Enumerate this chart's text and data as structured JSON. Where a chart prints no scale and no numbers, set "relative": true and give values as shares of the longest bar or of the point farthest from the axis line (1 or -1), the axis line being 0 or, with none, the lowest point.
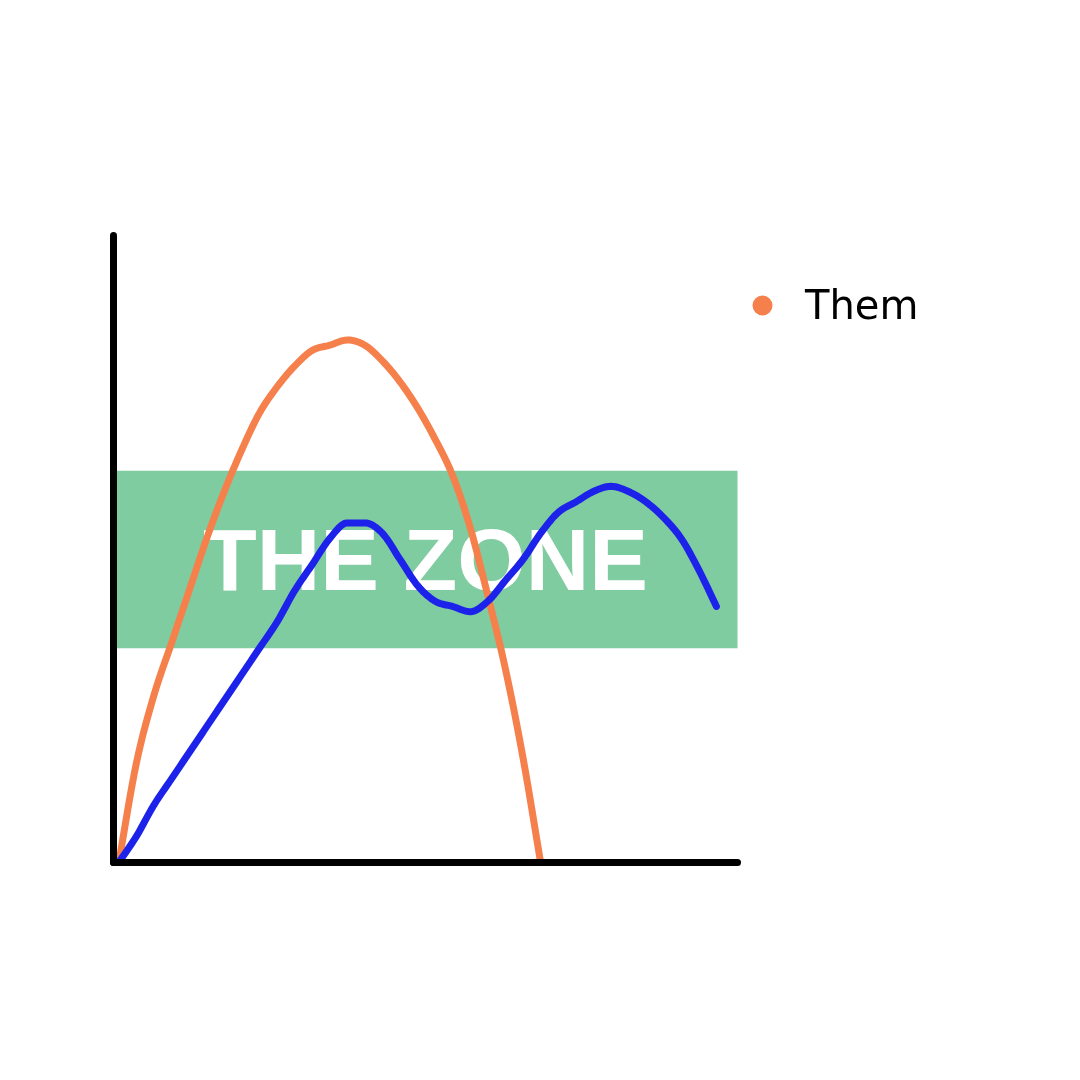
{
  "chart_data": {
    "type": "line",
    "relative": true,
    "categories": [
      null,
      null,
      null,
      null,
      null,
      null,
      null,
      null,
      null,
      null,
      null,
      null,
      null,
      null,
      null,
      null,
      null,
      null,
      null,
      null,
      null,
      null,
      null,
      null,
      null,
      null,
      null,
      null,
      null,
      null,
      null,
      null,
      null,
      null,
      null
    ],
    "series": [
      {
        "name": "Them",
        "color": "#f5804c",
        "values": [
          0,
          0.19,
          0.32,
          0.42,
          0.52,
          0.62,
          0.71,
          0.79,
          0.86,
          0.91,
          0.95,
          0.98,
          0.99,
          1,
          0.99,
          0.96,
          0.92,
          0.87,
          0.81,
          0.74,
          0.64,
          0.51,
          0.37,
          0.2,
          0,
          null,
          null,
          null,
          null,
          null,
          null,
          null,
          null,
          null,
          null
        ]
      },
      {
        "color": "#1c22ea",
        "values": [
          0,
          0.05,
          0.11,
          0.16,
          0.21,
          0.26,
          0.31,
          0.36,
          0.41,
          0.46,
          0.52,
          0.57,
          0.62,
          0.65,
          0.65,
          0.63,
          0.58,
          0.53,
          0.5,
          0.49,
          0.48,
          0.5,
          0.54,
          0.58,
          0.63,
          0.67,
          0.69,
          0.71,
          0.72,
          0.71,
          0.69,
          0.66,
          0.62,
          0.56,
          0.49
        ]
      }
    ],
    "bands": [
      {
        "axis": "y",
        "from": 0.41,
        "to": 0.75,
        "label": "THE ZONE",
        "color": "#7fcca0"
      }
    ],
    "legend": "top right",
    "line_style": "solid"
  }
}
